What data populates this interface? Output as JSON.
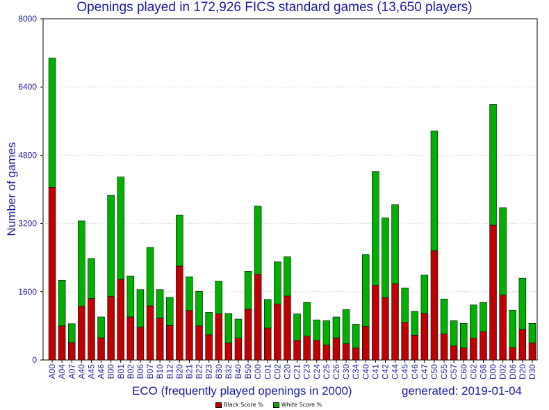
{
  "chart_data": {
    "type": "bar",
    "stacked": true,
    "title": "Openings played in 172,926 FICS standard games (13,650 players)",
    "xlabel": "ECO (frequently played openings in 2000)",
    "ylabel": "Number of games",
    "generated": "generated: 2019-01-04",
    "ylim": [
      0,
      8000
    ],
    "yticks": [
      0,
      1600,
      3200,
      4800,
      6400,
      8000
    ],
    "categories": [
      "A00",
      "A04",
      "A07",
      "A40",
      "A45",
      "A46",
      "B00",
      "B01",
      "B02",
      "B06",
      "B07",
      "B10",
      "B12",
      "B20",
      "B21",
      "B22",
      "B23",
      "B30",
      "B32",
      "B40",
      "B50",
      "C00",
      "C01",
      "C02",
      "C20",
      "C21",
      "C23",
      "C24",
      "C25",
      "C26",
      "C30",
      "C34",
      "C40",
      "C41",
      "C42",
      "C44",
      "C45",
      "C46",
      "C47",
      "C50",
      "C55",
      "C57",
      "C60",
      "C62",
      "C68",
      "D00",
      "D02",
      "D06",
      "D20",
      "D30"
    ],
    "series": [
      {
        "name": "Black Score %",
        "color": "#c00000",
        "values": [
          4050,
          800,
          410,
          1260,
          1440,
          520,
          1490,
          1890,
          1010,
          770,
          1270,
          980,
          810,
          2200,
          1160,
          800,
          590,
          1080,
          400,
          510,
          1190,
          2010,
          750,
          1310,
          1500,
          460,
          560,
          460,
          350,
          520,
          380,
          280,
          790,
          1750,
          1460,
          1790,
          880,
          580,
          1090,
          2560,
          610,
          330,
          280,
          510,
          660,
          3160,
          1520,
          290,
          710,
          400
        ]
      },
      {
        "name": "White Score %",
        "color": "#00b000",
        "values": [
          3030,
          1070,
          440,
          2000,
          940,
          490,
          2370,
          2400,
          960,
          880,
          1370,
          670,
          660,
          1200,
          790,
          810,
          530,
          770,
          690,
          450,
          890,
          1600,
          670,
          990,
          920,
          620,
          790,
          480,
          570,
          490,
          800,
          560,
          1680,
          2670,
          1870,
          1850,
          810,
          560,
          900,
          2810,
          820,
          590,
          580,
          780,
          690,
          2830,
          2050,
          880,
          1210,
          460
        ]
      }
    ]
  }
}
